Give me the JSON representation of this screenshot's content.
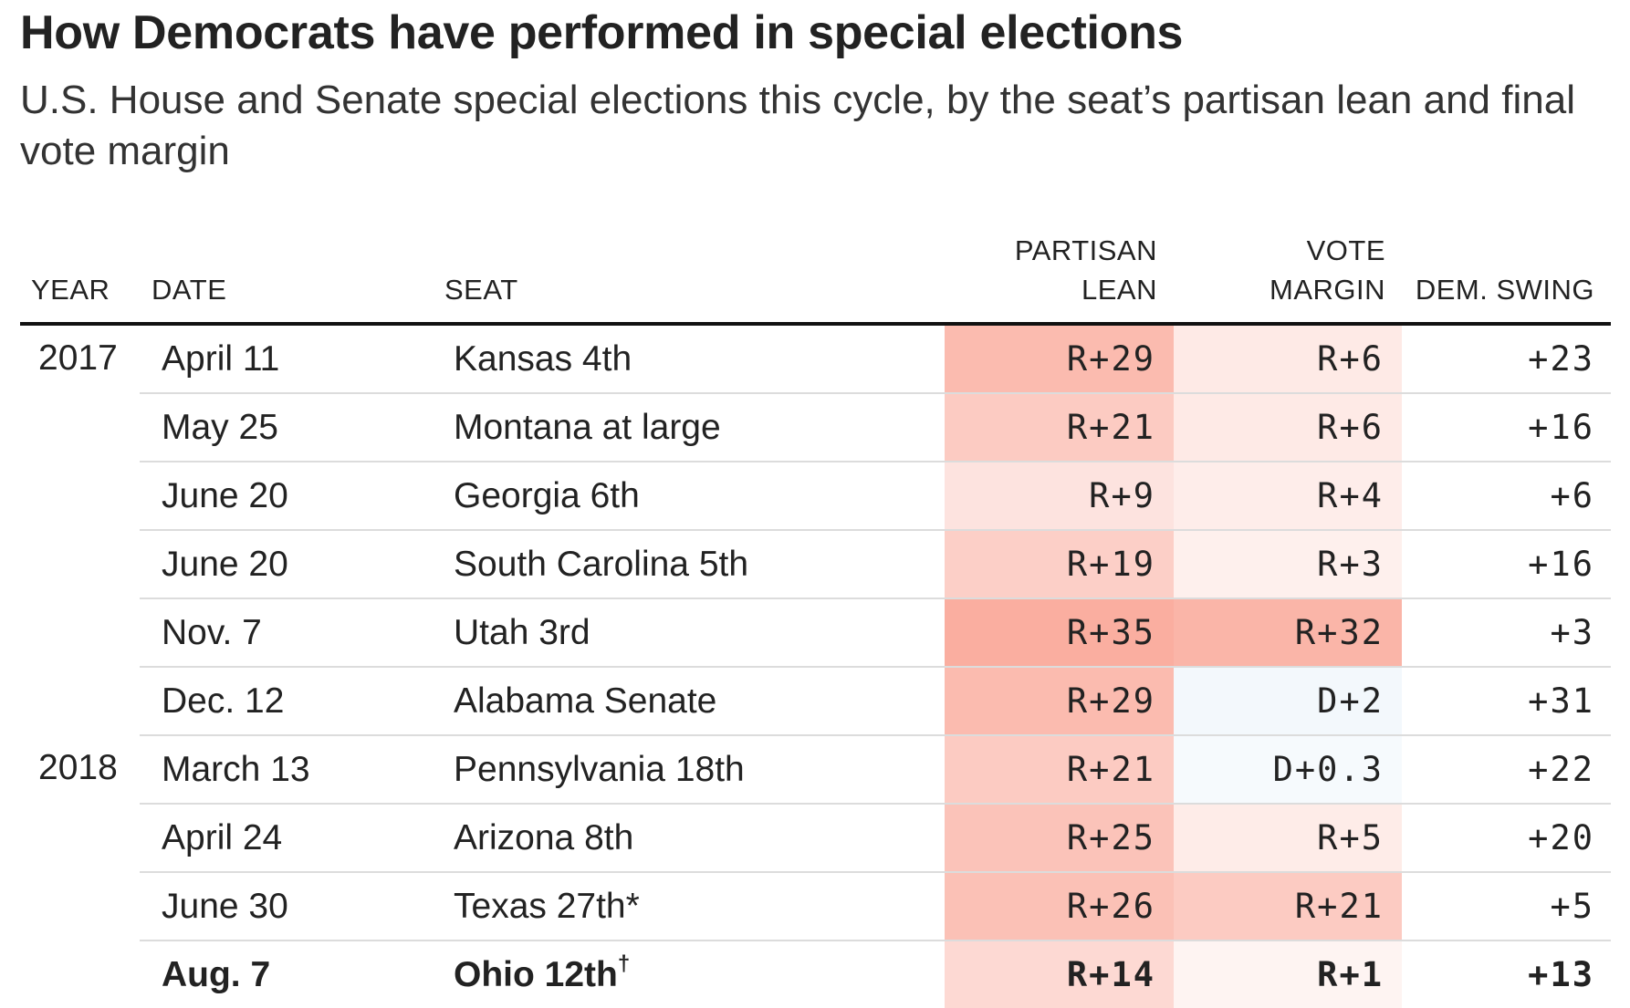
{
  "title": "How Democrats have performed in special elections",
  "subtitle": "U.S. House and Senate special elections this cycle, by the seat’s partisan lean and final vote margin",
  "chart_data": {
    "type": "table",
    "columns": {
      "year": "YEAR",
      "date": "DATE",
      "seat": "SEAT",
      "lean_line1": "PARTISAN",
      "lean_line2": "LEAN",
      "margin_line1": "VOTE",
      "margin_line2": "MARGIN",
      "swing": "DEM. SWING"
    },
    "rows": [
      {
        "year": "2017",
        "date": "April 11",
        "seat": "Kansas 4th",
        "mark": "",
        "lean": "R+29",
        "lean_value": -29,
        "margin": "R+6",
        "margin_value": -6,
        "swing": "+23",
        "bold": false
      },
      {
        "year": "",
        "date": "May 25",
        "seat": "Montana at large",
        "mark": "",
        "lean": "R+21",
        "lean_value": -21,
        "margin": "R+6",
        "margin_value": -6,
        "swing": "+16",
        "bold": false
      },
      {
        "year": "",
        "date": "June 20",
        "seat": "Georgia 6th",
        "mark": "",
        "lean": "R+9",
        "lean_value": -9,
        "margin": "R+4",
        "margin_value": -4,
        "swing": "+6",
        "bold": false
      },
      {
        "year": "",
        "date": "June 20",
        "seat": "South Carolina 5th",
        "mark": "",
        "lean": "R+19",
        "lean_value": -19,
        "margin": "R+3",
        "margin_value": -3,
        "swing": "+16",
        "bold": false
      },
      {
        "year": "",
        "date": "Nov. 7",
        "seat": "Utah 3rd",
        "mark": "",
        "lean": "R+35",
        "lean_value": -35,
        "margin": "R+32",
        "margin_value": -32,
        "swing": "+3",
        "bold": false
      },
      {
        "year": "",
        "date": "Dec. 12",
        "seat": "Alabama Senate",
        "mark": "",
        "lean": "R+29",
        "lean_value": -29,
        "margin": "D+2",
        "margin_value": 2,
        "swing": "+31",
        "bold": false
      },
      {
        "year": "2018",
        "date": "March 13",
        "seat": "Pennsylvania 18th",
        "mark": "",
        "lean": "R+21",
        "lean_value": -21,
        "margin": "D+0.3",
        "margin_value": 0.3,
        "swing": "+22",
        "bold": false
      },
      {
        "year": "",
        "date": "April 24",
        "seat": "Arizona 8th",
        "mark": "",
        "lean": "R+25",
        "lean_value": -25,
        "margin": "R+5",
        "margin_value": -5,
        "swing": "+20",
        "bold": false
      },
      {
        "year": "",
        "date": "June 30",
        "seat": "Texas 27th*",
        "mark": "",
        "lean": "R+26",
        "lean_value": -26,
        "margin": "R+21",
        "margin_value": -21,
        "swing": "+5",
        "bold": false
      },
      {
        "year": "",
        "date": "Aug. 7",
        "seat": "Ohio 12th",
        "mark": "†",
        "lean": "R+14",
        "lean_value": -14,
        "margin": "R+1",
        "margin_value": -1,
        "swing": "+13",
        "bold": true
      }
    ],
    "colors": {
      "republican": "#f8a090",
      "democrat": "#a0c8e6"
    }
  }
}
